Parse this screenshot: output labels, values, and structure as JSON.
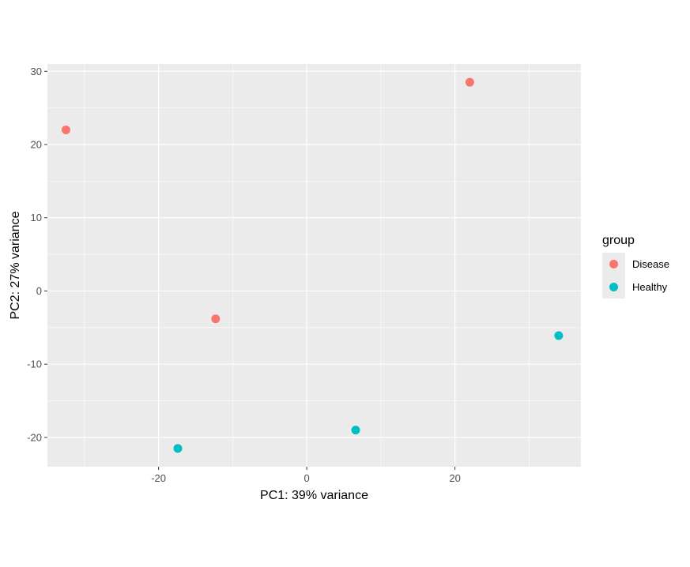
{
  "chart_data": {
    "type": "scatter",
    "xlabel": "PC1: 39% variance",
    "ylabel": "PC2: 27% variance",
    "xlim": [
      -35,
      37
    ],
    "ylim": [
      -24,
      31
    ],
    "x_ticks": [
      -20,
      0,
      20
    ],
    "y_ticks": [
      30,
      20,
      10,
      0,
      -10,
      -20
    ],
    "x_tick_labels": [
      "-20",
      "0",
      "20"
    ],
    "y_tick_labels": [
      "30",
      "20",
      "10",
      "0",
      "-10",
      "-20"
    ],
    "grid": true,
    "legend": {
      "title": "group",
      "placement": "right",
      "entries": [
        {
          "label": "Disease",
          "color": "#F8766D"
        },
        {
          "label": "Healthy",
          "color": "#00BFC4"
        }
      ]
    },
    "series": [
      {
        "name": "Disease",
        "color": "#F8766D",
        "points": [
          {
            "x": -32.5,
            "y": 22.0
          },
          {
            "x": 22.0,
            "y": 28.5
          },
          {
            "x": -12.3,
            "y": -3.8
          }
        ]
      },
      {
        "name": "Healthy",
        "color": "#00BFC4",
        "points": [
          {
            "x": 34.0,
            "y": -6.1
          },
          {
            "x": 6.6,
            "y": -19.0
          },
          {
            "x": -17.4,
            "y": -21.5
          }
        ]
      }
    ]
  },
  "colors": {
    "panel_background": "#EBEBEB",
    "grid_line": "#FFFFFF",
    "legend_key_background": "#EBEBEB"
  }
}
